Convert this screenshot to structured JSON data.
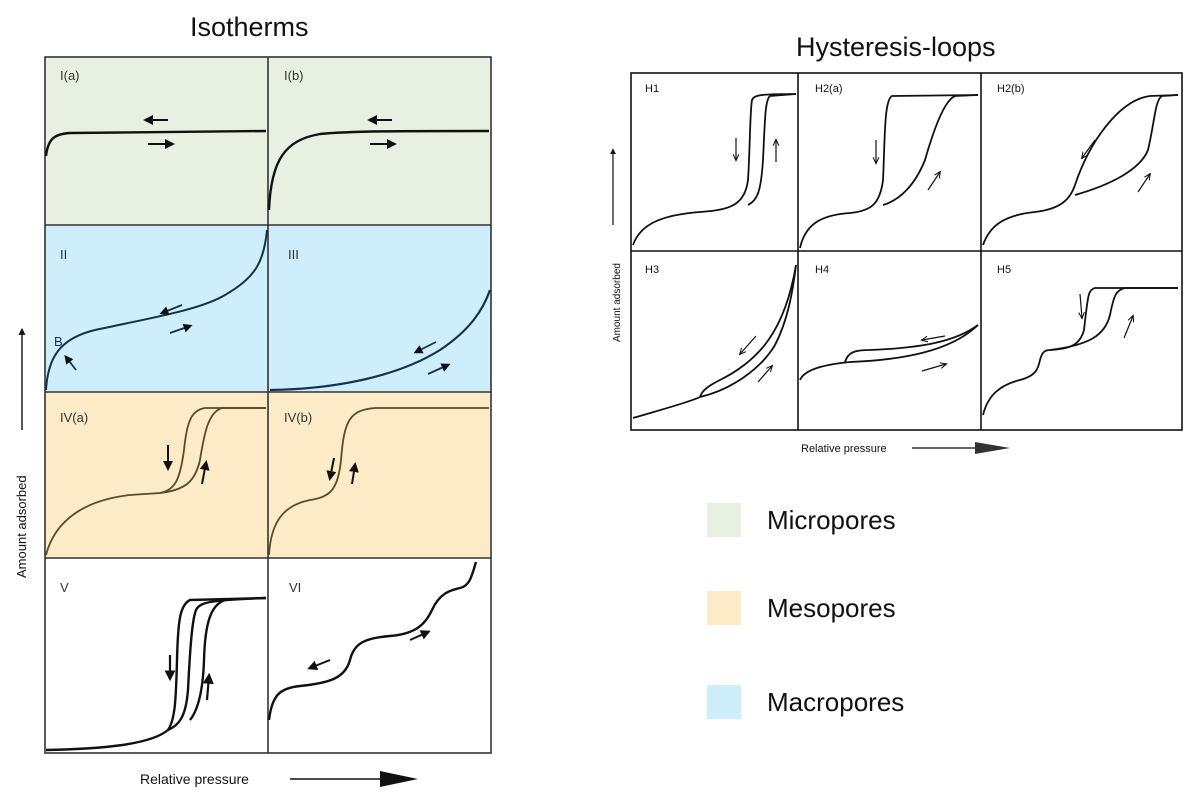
{
  "isotherms": {
    "title": "Isotherms",
    "ylabel": "Amount adsorbed",
    "xlabel": "Relative pressure",
    "panels": [
      {
        "label": "I(a)",
        "category": "micropores"
      },
      {
        "label": "I(b)",
        "category": "micropores"
      },
      {
        "label": "II",
        "category": "macropores",
        "point_label": "B"
      },
      {
        "label": "III",
        "category": "macropores"
      },
      {
        "label": "IV(a)",
        "category": "mesopores"
      },
      {
        "label": "IV(b)",
        "category": "mesopores"
      },
      {
        "label": "V",
        "category": "none"
      },
      {
        "label": "VI",
        "category": "none"
      }
    ]
  },
  "hysteresis": {
    "title": "Hysteresis-loops",
    "ylabel": "Amount adsorbed",
    "xlabel": "Relative pressure",
    "panels": [
      {
        "label": "H1"
      },
      {
        "label": "H2(a)"
      },
      {
        "label": "H2(b)"
      },
      {
        "label": "H3"
      },
      {
        "label": "H4"
      },
      {
        "label": "H5"
      }
    ]
  },
  "legend": [
    {
      "label": "Micropores",
      "color": "#e8f1e1"
    },
    {
      "label": "Mesopores",
      "color": "#fcebc6"
    },
    {
      "label": "Macropores",
      "color": "#cdeefa"
    }
  ],
  "colors": {
    "micropores": "#e8f1e1",
    "mesopores": "#fcebc6",
    "macropores": "#cdeefa",
    "curve": "#111111",
    "mesopore_curve": "#5a4a2a",
    "macropore_curve": "#16324a"
  }
}
